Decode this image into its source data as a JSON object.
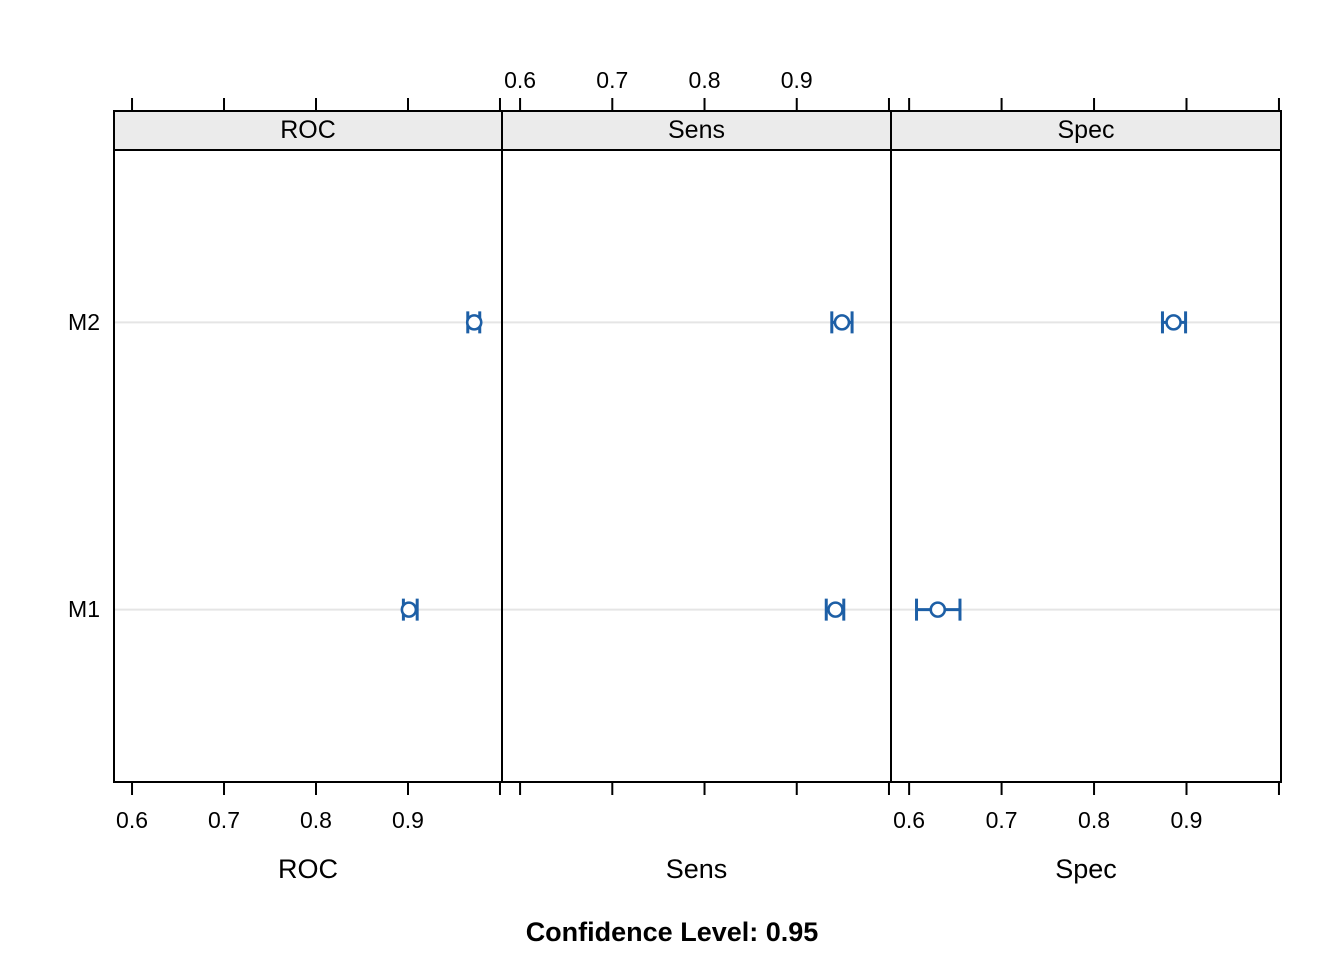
{
  "figure": {
    "subtitle": "Confidence Level: 0.95"
  },
  "chart_data": {
    "type": "scatter",
    "subtype": "dotplot-with-confidence-intervals",
    "title": "",
    "sub": "Confidence Level: 0.95",
    "confidence_level": 0.95,
    "y_categories": [
      "M1",
      "M2"
    ],
    "panels": [
      {
        "title": "ROC",
        "xlabel": "ROC",
        "x_label_side": "bottom"
      },
      {
        "title": "Sens",
        "xlabel": "Sens",
        "x_label_side": "top"
      },
      {
        "title": "Spec",
        "xlabel": "Spec",
        "x_label_side": "bottom"
      }
    ],
    "x_ticks": [
      0.6,
      0.7,
      0.8,
      0.9,
      1.0
    ],
    "x_tick_labels": [
      "0.6",
      "0.7",
      "0.8",
      "0.9",
      ""
    ],
    "xlim": [
      0.5804,
      1.0022
    ],
    "grid": true,
    "legend_position": "none",
    "series": [
      {
        "panel": "ROC",
        "model": "M1",
        "estimate": 0.901,
        "lower": 0.895,
        "upper": 0.91
      },
      {
        "panel": "ROC",
        "model": "M2",
        "estimate": 0.972,
        "lower": 0.965,
        "upper": 0.978
      },
      {
        "panel": "Sens",
        "model": "M1",
        "estimate": 0.942,
        "lower": 0.932,
        "upper": 0.951
      },
      {
        "panel": "Sens",
        "model": "M2",
        "estimate": 0.949,
        "lower": 0.938,
        "upper": 0.96
      },
      {
        "panel": "Spec",
        "model": "M1",
        "estimate": 0.631,
        "lower": 0.608,
        "upper": 0.655
      },
      {
        "panel": "Spec",
        "model": "M2",
        "estimate": 0.886,
        "lower": 0.874,
        "upper": 0.899
      }
    ],
    "colors": {
      "point": "#1d5fa6",
      "gridline": "#e5e5e5",
      "strip_background": "#ebebeb",
      "border": "#000000",
      "panel_background": "#ffffff"
    }
  }
}
